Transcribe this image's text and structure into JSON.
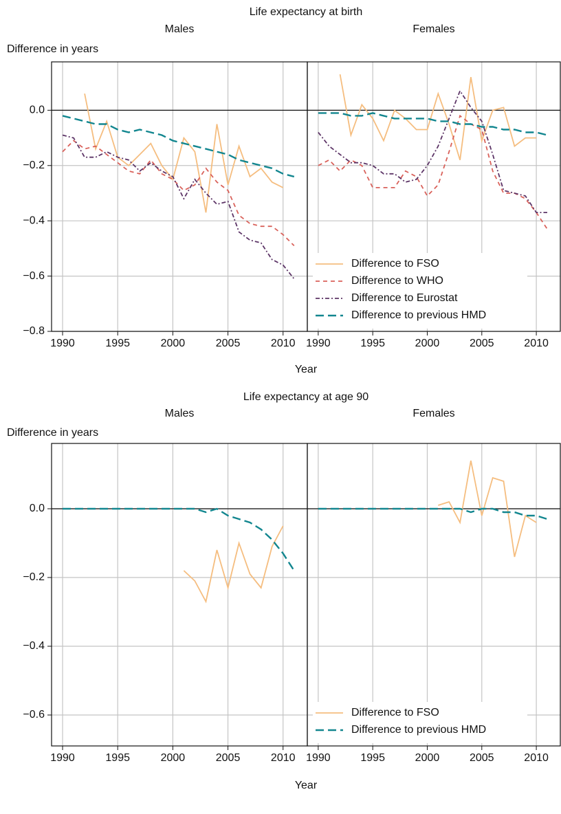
{
  "chart_data": [
    {
      "type": "line",
      "title": "Life expectancy at birth",
      "ylabel": "Difference in years",
      "xlabel": "Year",
      "panels": [
        "Males",
        "Females"
      ],
      "x": [
        1990,
        1991,
        1992,
        1993,
        1994,
        1995,
        1996,
        1997,
        1998,
        1999,
        2000,
        2001,
        2002,
        2003,
        2004,
        2005,
        2006,
        2007,
        2008,
        2009,
        2010,
        2011
      ],
      "xlim": [
        1989,
        2012.2
      ],
      "xticks": [
        1990,
        1995,
        2000,
        2005,
        2010
      ],
      "ylim": [
        -0.8,
        0.175
      ],
      "yticks": [
        {
          "value": -0.8,
          "label": "−0.8"
        },
        {
          "value": -0.6,
          "label": "−0.6"
        },
        {
          "value": -0.4,
          "label": "−0.4"
        },
        {
          "value": -0.2,
          "label": "−0.2"
        },
        {
          "value": 0,
          "label": "0.0"
        }
      ],
      "grid": true,
      "legend": "lower right",
      "series": [
        {
          "name": "Difference to FSO",
          "color": "#f5bd7f",
          "dash": "solid",
          "values": [
            [
              null,
              null,
              0.06,
              -0.14,
              -0.04,
              -0.17,
              -0.2,
              -0.16,
              -0.12,
              -0.2,
              -0.25,
              -0.1,
              -0.15,
              -0.37,
              -0.05,
              -0.27,
              -0.13,
              -0.24,
              -0.21,
              -0.26,
              -0.28,
              null
            ],
            [
              null,
              null,
              0.13,
              -0.09,
              0.02,
              -0.03,
              -0.11,
              0.0,
              -0.03,
              -0.07,
              -0.07,
              0.06,
              -0.05,
              -0.18,
              0.12,
              -0.11,
              0.0,
              0.01,
              -0.13,
              -0.1,
              -0.1,
              null
            ]
          ]
        },
        {
          "name": "Difference to WHO",
          "color": "#d9615a",
          "dash": "dashed",
          "values": [
            [
              -0.15,
              -0.11,
              -0.14,
              -0.13,
              -0.16,
              -0.19,
              -0.22,
              -0.23,
              -0.18,
              -0.23,
              -0.25,
              -0.29,
              -0.27,
              -0.21,
              -0.26,
              -0.29,
              -0.38,
              -0.41,
              -0.42,
              -0.42,
              -0.45,
              -0.49
            ],
            [
              -0.2,
              -0.18,
              -0.22,
              -0.18,
              -0.2,
              -0.28,
              -0.28,
              -0.28,
              -0.22,
              -0.24,
              -0.31,
              -0.27,
              -0.15,
              -0.02,
              -0.05,
              -0.07,
              -0.22,
              -0.3,
              -0.3,
              -0.32,
              -0.37,
              -0.43
            ]
          ]
        },
        {
          "name": "Difference to Eurostat",
          "color": "#5c3466",
          "dash": "dashdot",
          "values": [
            [
              -0.09,
              -0.1,
              -0.17,
              -0.17,
              -0.15,
              -0.17,
              -0.18,
              -0.22,
              -0.19,
              -0.22,
              -0.24,
              -0.32,
              -0.25,
              -0.3,
              -0.34,
              -0.33,
              -0.44,
              -0.47,
              -0.48,
              -0.54,
              -0.56,
              -0.61
            ],
            [
              -0.08,
              -0.13,
              -0.16,
              -0.19,
              -0.19,
              -0.2,
              -0.23,
              -0.23,
              -0.26,
              -0.25,
              -0.2,
              -0.13,
              -0.03,
              0.07,
              0.01,
              -0.04,
              -0.16,
              -0.29,
              -0.3,
              -0.31,
              -0.37,
              -0.37
            ]
          ]
        },
        {
          "name": "Difference to previous HMD",
          "color": "#12868f",
          "dash": "longdash",
          "values": [
            [
              -0.02,
              -0.03,
              -0.04,
              -0.05,
              -0.05,
              -0.07,
              -0.08,
              -0.07,
              -0.08,
              -0.09,
              -0.11,
              -0.12,
              -0.13,
              -0.14,
              -0.15,
              -0.16,
              -0.18,
              -0.19,
              -0.2,
              -0.21,
              -0.23,
              -0.24
            ],
            [
              -0.01,
              -0.01,
              -0.01,
              -0.02,
              -0.02,
              -0.01,
              -0.02,
              -0.03,
              -0.03,
              -0.03,
              -0.03,
              -0.04,
              -0.04,
              -0.05,
              -0.05,
              -0.06,
              -0.06,
              -0.07,
              -0.07,
              -0.08,
              -0.08,
              -0.09
            ]
          ]
        }
      ]
    },
    {
      "type": "line",
      "title": "Life expectancy at age 90",
      "ylabel": "Difference in years",
      "xlabel": "Year",
      "panels": [
        "Males",
        "Females"
      ],
      "x": [
        1990,
        1991,
        1992,
        1993,
        1994,
        1995,
        1996,
        1997,
        1998,
        1999,
        2000,
        2001,
        2002,
        2003,
        2004,
        2005,
        2006,
        2007,
        2008,
        2009,
        2010,
        2011
      ],
      "xlim": [
        1989,
        2012.2
      ],
      "xticks": [
        1990,
        1995,
        2000,
        2005,
        2010
      ],
      "ylim": [
        -0.69,
        0.19
      ],
      "yticks": [
        {
          "value": -0.6,
          "label": "−0.6"
        },
        {
          "value": -0.4,
          "label": "−0.4"
        },
        {
          "value": -0.2,
          "label": "−0.2"
        },
        {
          "value": 0,
          "label": "0.0"
        }
      ],
      "grid": true,
      "legend": "lower right",
      "series": [
        {
          "name": "Difference to FSO",
          "color": "#f5bd7f",
          "dash": "solid",
          "values": [
            [
              null,
              null,
              null,
              null,
              null,
              null,
              null,
              null,
              null,
              null,
              null,
              -0.18,
              -0.21,
              -0.27,
              -0.12,
              -0.23,
              -0.1,
              -0.19,
              -0.23,
              -0.11,
              -0.05,
              null
            ],
            [
              null,
              null,
              null,
              null,
              null,
              null,
              null,
              null,
              null,
              null,
              null,
              0.01,
              0.02,
              -0.04,
              0.14,
              -0.02,
              0.09,
              0.08,
              -0.14,
              -0.02,
              -0.04,
              null
            ]
          ]
        },
        {
          "name": "Difference to previous HMD",
          "color": "#12868f",
          "dash": "longdash",
          "values": [
            [
              0,
              0,
              0,
              0,
              0,
              0,
              0,
              0,
              0,
              0,
              0,
              0,
              0,
              -0.01,
              0,
              -0.02,
              -0.03,
              -0.04,
              -0.06,
              -0.09,
              -0.13,
              -0.18
            ],
            [
              0,
              0,
              0,
              0,
              0,
              0,
              0,
              0,
              0,
              0,
              0,
              0,
              0,
              0,
              -0.01,
              0,
              0,
              -0.01,
              -0.01,
              -0.02,
              -0.02,
              -0.03
            ]
          ]
        }
      ]
    }
  ]
}
